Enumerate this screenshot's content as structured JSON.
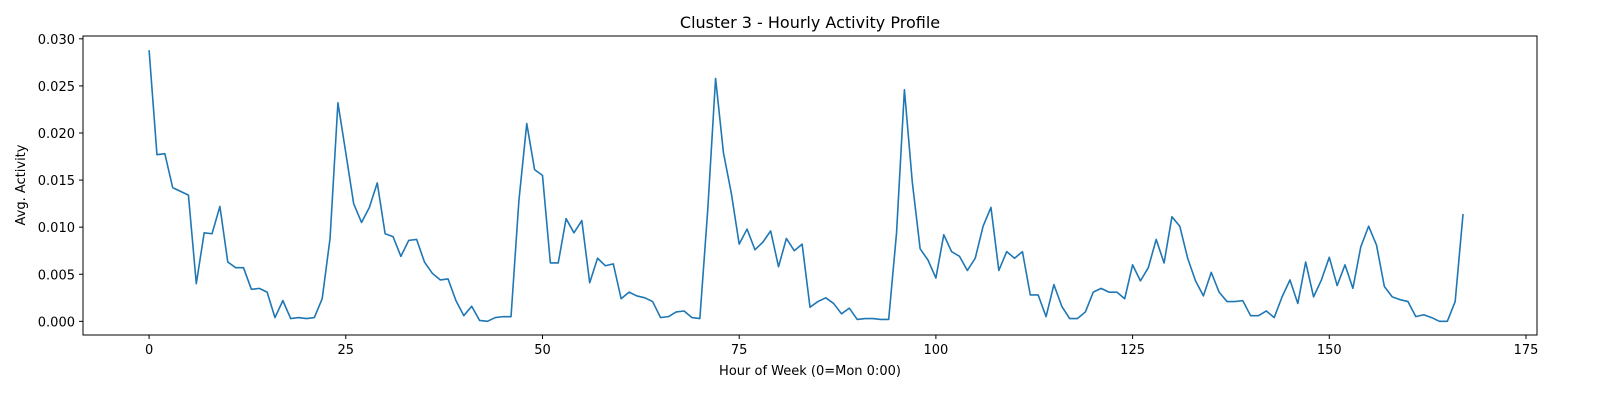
{
  "chart_data": {
    "type": "line",
    "title": "Cluster 3 - Hourly Activity Profile",
    "xlabel": "Hour of Week (0=Mon 0:00)",
    "ylabel": "Avg. Activity",
    "xlim": [
      -8.4,
      176.4
    ],
    "ylim": [
      -0.00145,
      0.0303
    ],
    "xticks": [
      0,
      25,
      50,
      75,
      100,
      125,
      150,
      175
    ],
    "xtick_labels": [
      "0",
      "25",
      "50",
      "75",
      "100",
      "125",
      "150",
      "175"
    ],
    "yticks": [
      0.0,
      0.005,
      0.01,
      0.015,
      0.02,
      0.025,
      0.03
    ],
    "ytick_labels": [
      "0.000",
      "0.005",
      "0.010",
      "0.015",
      "0.020",
      "0.025",
      "0.030"
    ],
    "grid": false,
    "series": [
      {
        "color": "#1f77b4",
        "x": [
          0,
          1,
          2,
          3,
          4,
          5,
          6,
          7,
          8,
          9,
          10,
          11,
          12,
          13,
          14,
          15,
          16,
          17,
          18,
          19,
          20,
          21,
          22,
          23,
          24,
          25,
          26,
          27,
          28,
          29,
          30,
          31,
          32,
          33,
          34,
          35,
          36,
          37,
          38,
          39,
          40,
          41,
          42,
          43,
          44,
          45,
          46,
          47,
          48,
          49,
          50,
          51,
          52,
          53,
          54,
          55,
          56,
          57,
          58,
          59,
          60,
          61,
          62,
          63,
          64,
          65,
          66,
          67,
          68,
          69,
          70,
          71,
          72,
          73,
          74,
          75,
          76,
          77,
          78,
          79,
          80,
          81,
          82,
          83,
          84,
          85,
          86,
          87,
          88,
          89,
          90,
          91,
          92,
          93,
          94,
          95,
          96,
          97,
          98,
          99,
          100,
          101,
          102,
          103,
          104,
          105,
          106,
          107,
          108,
          109,
          110,
          111,
          112,
          113,
          114,
          115,
          116,
          117,
          118,
          119,
          120,
          121,
          122,
          123,
          124,
          125,
          126,
          127,
          128,
          129,
          130,
          131,
          132,
          133,
          134,
          135,
          136,
          137,
          138,
          139,
          140,
          141,
          142,
          143,
          144,
          145,
          146,
          147,
          148,
          149,
          150,
          151,
          152,
          153,
          154,
          155,
          156,
          157,
          158,
          159,
          160,
          161,
          162,
          163,
          164,
          165,
          166,
          167
        ],
        "values": [
          0.0288,
          0.0177,
          0.0178,
          0.0142,
          0.0138,
          0.0134,
          0.004,
          0.0094,
          0.0093,
          0.0122,
          0.0063,
          0.0057,
          0.0057,
          0.0034,
          0.0035,
          0.0031,
          0.0004,
          0.0022,
          0.0003,
          0.0004,
          0.0003,
          0.0004,
          0.0024,
          0.0088,
          0.0232,
          0.0179,
          0.0125,
          0.0105,
          0.0121,
          0.0147,
          0.0093,
          0.009,
          0.0069,
          0.0086,
          0.0087,
          0.0063,
          0.0051,
          0.0044,
          0.0045,
          0.0022,
          0.0006,
          0.0016,
          0.0001,
          0.0,
          0.0004,
          0.0005,
          0.0005,
          0.0128,
          0.021,
          0.0161,
          0.0155,
          0.0062,
          0.0062,
          0.0109,
          0.0094,
          0.0107,
          0.0041,
          0.0067,
          0.0059,
          0.0061,
          0.0024,
          0.0031,
          0.0027,
          0.0025,
          0.0021,
          0.0004,
          0.0005,
          0.001,
          0.0011,
          0.0004,
          0.0003,
          0.0118,
          0.0258,
          0.0179,
          0.0136,
          0.0082,
          0.0098,
          0.0076,
          0.0084,
          0.0096,
          0.0058,
          0.0088,
          0.0075,
          0.0082,
          0.0015,
          0.0021,
          0.0025,
          0.0019,
          0.0008,
          0.0014,
          0.0002,
          0.0003,
          0.0003,
          0.0002,
          0.0002,
          0.0094,
          0.0246,
          0.0148,
          0.0077,
          0.0065,
          0.0046,
          0.0092,
          0.0074,
          0.0069,
          0.0054,
          0.0067,
          0.0101,
          0.0121,
          0.0054,
          0.0074,
          0.0067,
          0.0074,
          0.0028,
          0.0028,
          0.0005,
          0.0039,
          0.0016,
          0.0003,
          0.0003,
          0.001,
          0.0031,
          0.0035,
          0.0031,
          0.0031,
          0.0024,
          0.006,
          0.0043,
          0.0057,
          0.0087,
          0.0062,
          0.0111,
          0.0101,
          0.0067,
          0.0043,
          0.0027,
          0.0052,
          0.0031,
          0.0021,
          0.0021,
          0.0022,
          0.0006,
          0.0006,
          0.0011,
          0.0004,
          0.0026,
          0.0044,
          0.0019,
          0.0063,
          0.0026,
          0.0044,
          0.0068,
          0.0038,
          0.006,
          0.0035,
          0.0079,
          0.0101,
          0.0081,
          0.0037,
          0.0026,
          0.0023,
          0.0021,
          0.0005,
          0.0007,
          0.0004,
          0.0,
          0.0,
          0.0021,
          0.0114
        ]
      }
    ]
  }
}
